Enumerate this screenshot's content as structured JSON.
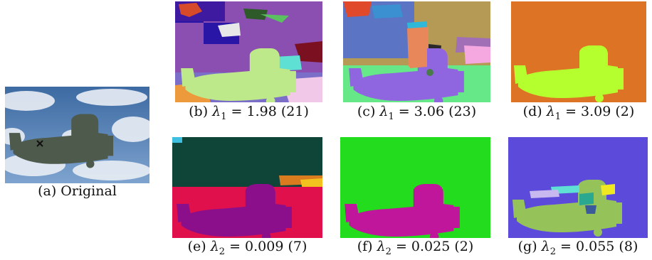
{
  "figure": {
    "panels": [
      {
        "id": "a",
        "caption": "(a) Original",
        "kind": "photo"
      },
      {
        "id": "b",
        "caption": "(b) λ1 = 1.98 (21)",
        "lambda_sub": "1",
        "value": "1.98",
        "regions": "21",
        "colors": {
          "background": "#8a4fb0",
          "plane": "#bde98a"
        }
      },
      {
        "id": "c",
        "caption": "(c) λ1 = 3.06 (23)",
        "lambda_sub": "1",
        "value": "3.06",
        "regions": "23",
        "colors": {
          "background": "#b59a55",
          "plane": "#e8875a"
        }
      },
      {
        "id": "d",
        "caption": "(d) λ1 = 3.09 (2)",
        "lambda_sub": "1",
        "value": "3.09",
        "regions": "2",
        "colors": {
          "background": "#dd7324",
          "plane": "#b6ff2e"
        }
      },
      {
        "id": "e",
        "caption": "(e) λ2 = 0.009 (7)",
        "lambda_sub": "2",
        "value": "0.009",
        "regions": "7",
        "colors": {
          "background": "#0f4438",
          "plane": "#8b0f8a"
        }
      },
      {
        "id": "f",
        "caption": "(f) λ2 = 0.025 (2)",
        "lambda_sub": "2",
        "value": "0.025",
        "regions": "2",
        "colors": {
          "background": "#22dc1d",
          "plane": "#c0169b"
        }
      },
      {
        "id": "g",
        "caption": "(g) λ2 = 0.055 (8)",
        "lambda_sub": "2",
        "value": "0.055",
        "regions": "8",
        "colors": {
          "background": "#5c4bdb",
          "plane": "#96c25a"
        }
      }
    ]
  }
}
